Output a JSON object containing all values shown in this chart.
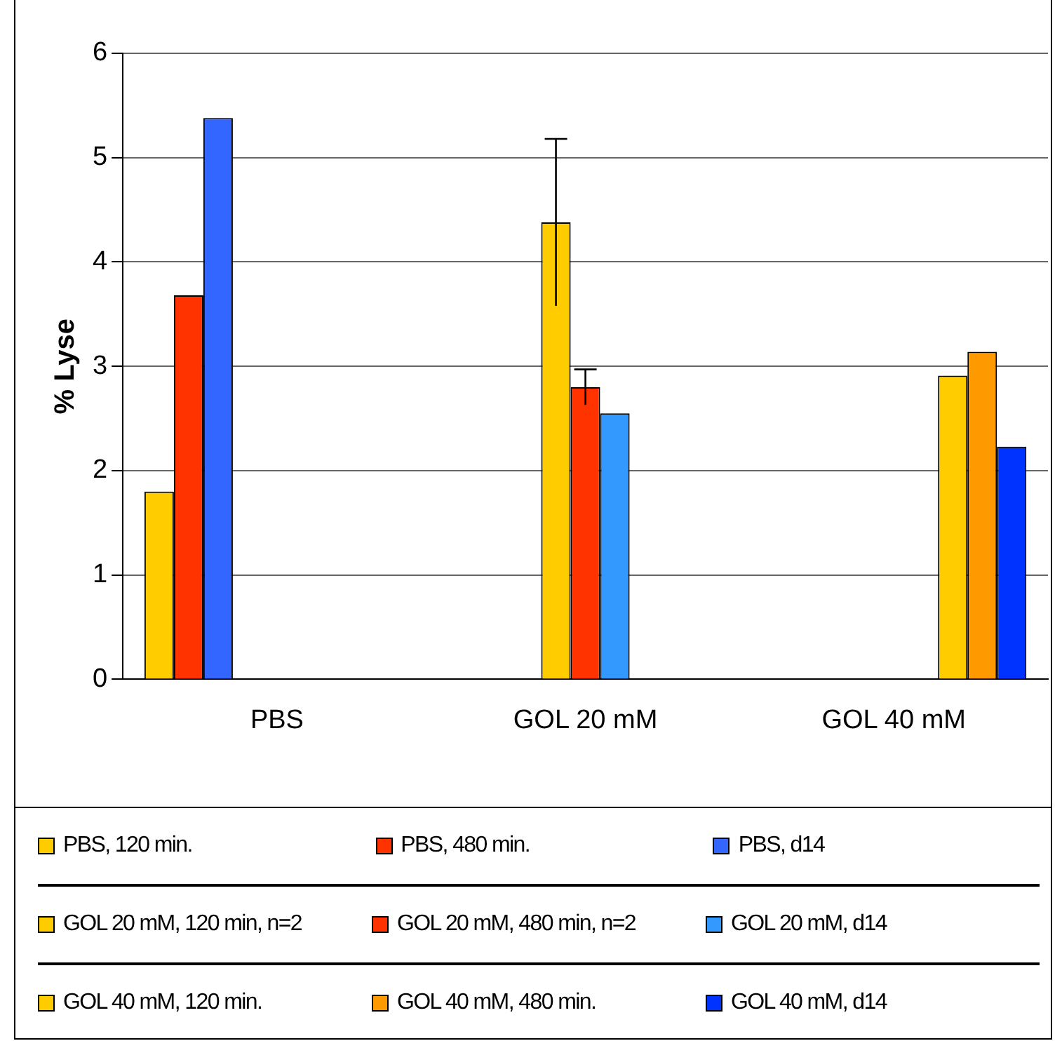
{
  "chart_data": {
    "type": "bar",
    "ylabel": "% Lyse",
    "categories": [
      "PBS",
      "GOL 20 mM",
      "GOL 40 mM"
    ],
    "series": [
      {
        "name": "PBS, 120 min.",
        "color": "#ffcc00",
        "values": [
          1.8,
          null,
          null
        ]
      },
      {
        "name": "PBS, 480 min.",
        "color": "#ff3300",
        "values": [
          3.68,
          null,
          null
        ]
      },
      {
        "name": "PBS, d14",
        "color": "#3366ff",
        "values": [
          5.38,
          null,
          null
        ]
      },
      {
        "name": "GOL 20 mM, 120 min, n=2",
        "color": "#ffcc00",
        "values": [
          null,
          4.38,
          null
        ],
        "errors": [
          null,
          0.8,
          null
        ]
      },
      {
        "name": "GOL 20 mM, 480 min, n=2",
        "color": "#ff3300",
        "values": [
          null,
          2.8,
          null
        ],
        "errors": [
          null,
          0.17,
          null
        ]
      },
      {
        "name": "GOL 20 mM, d14",
        "color": "#3399ff",
        "values": [
          null,
          2.55,
          null
        ]
      },
      {
        "name": "GOL 40 mM, 120 min.",
        "color": "#ffcc00",
        "values": [
          null,
          null,
          2.91
        ]
      },
      {
        "name": "GOL 40 mM, 480 min.",
        "color": "#ff9900",
        "values": [
          null,
          null,
          3.14
        ]
      },
      {
        "name": "GOL 40 mM, d14",
        "color": "#0033ff",
        "values": [
          null,
          null,
          2.23
        ]
      }
    ],
    "ylim": [
      0,
      6
    ],
    "yticks": [
      0,
      1,
      2,
      3,
      4,
      5,
      6
    ],
    "grid": "y",
    "legend": "bottom"
  }
}
